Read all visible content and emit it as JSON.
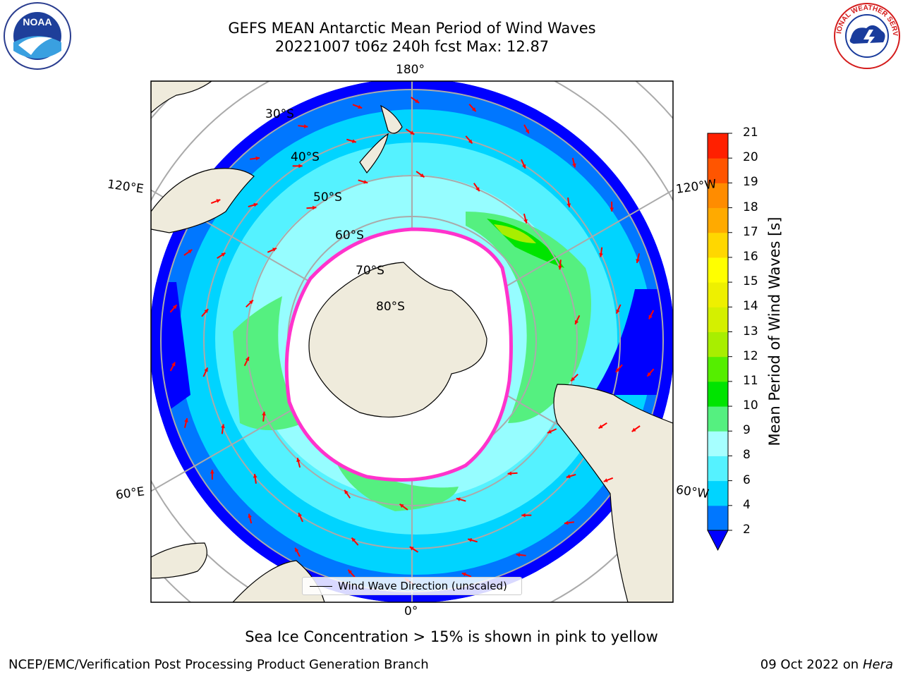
{
  "header": {
    "title_line1": "GEFS MEAN Antarctic Mean Period of Wind Waves",
    "title_line2": "20221007 t06z 240h fcst   Max: 12.87"
  },
  "logos": {
    "left_name": "noaa-logo",
    "left_text": "NOAA",
    "right_name": "nws-logo",
    "right_text": "NATIONAL WEATHER SERVICE"
  },
  "map": {
    "projection": "south-polar-stereographic",
    "longitude_labels": {
      "top": "180°",
      "upper_left": "120°E",
      "upper_right": "120°W",
      "lower_left": "60°E",
      "lower_right": "60°W",
      "bottom": "0°"
    },
    "latitude_labels": [
      "30°S",
      "40°S",
      "50°S",
      "60°S",
      "70°S",
      "80°S"
    ],
    "legend": "Wind Wave Direction (unscaled)",
    "colors": {
      "land": "#efebdc",
      "sea_ice": "#ffffff",
      "ice_edge": "#ff33cc",
      "arrows": "#ff0000",
      "graticule": "#aaaaaa"
    }
  },
  "colorbar": {
    "label": "Mean Period of Wind Waves [s]",
    "ticks": [
      "2",
      "4",
      "6",
      "8",
      "9",
      "10",
      "11",
      "12",
      "13",
      "14",
      "15",
      "16",
      "17",
      "18",
      "19",
      "20",
      "21"
    ],
    "colors": [
      "#0077ff",
      "#00d4ff",
      "#55f2ff",
      "#a6ffff",
      "#55f080",
      "#00e400",
      "#55ee00",
      "#a8ee00",
      "#d4f000",
      "#eef000",
      "#ffff00",
      "#ffd700",
      "#ffaa00",
      "#ff8c00",
      "#ff5500",
      "#ff2000"
    ],
    "under_color": "#0000ff"
  },
  "footer": {
    "note": "Sea Ice Concentration > 15% is shown in pink to yellow",
    "left": "NCEP/EMC/Verification Post Processing Product Generation Branch",
    "right_date": "09 Oct 2022 on",
    "right_host": "Hera"
  }
}
